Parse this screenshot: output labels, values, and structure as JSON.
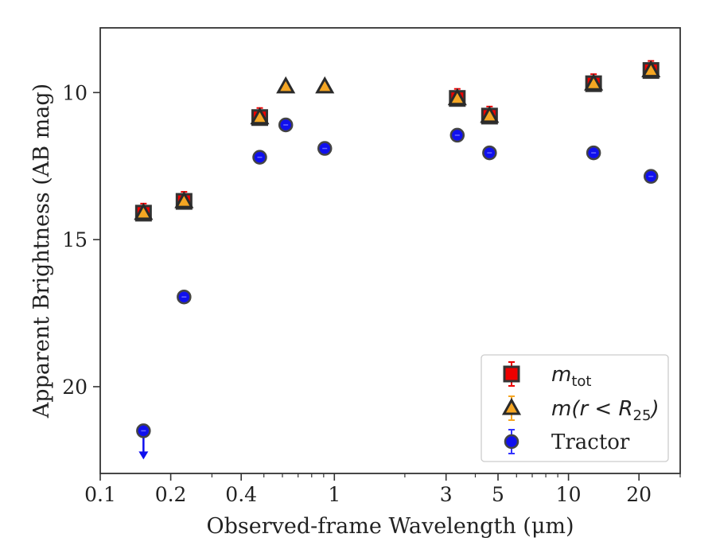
{
  "chart_data": {
    "type": "scatter",
    "xlabel": "Observed-frame Wavelength (μm)",
    "ylabel": "Apparent Brightness (AB mag)",
    "x_scale": "log",
    "y_inverted": true,
    "xlim": [
      0.1,
      30
    ],
    "ylim": [
      22.95,
      7.8
    ],
    "x_ticks": [
      {
        "value": 0.1,
        "label": "0.1"
      },
      {
        "value": 0.2,
        "label": "0.2"
      },
      {
        "value": 0.4,
        "label": "0.4"
      },
      {
        "value": 1,
        "label": "1"
      },
      {
        "value": 3,
        "label": "3"
      },
      {
        "value": 5,
        "label": "5"
      },
      {
        "value": 10,
        "label": "10"
      },
      {
        "value": 20,
        "label": "20"
      }
    ],
    "y_ticks": [
      {
        "value": 10,
        "label": "10"
      },
      {
        "value": 15,
        "label": "15"
      },
      {
        "value": 20,
        "label": "20"
      }
    ],
    "grid": false,
    "legend_position": "lower-right",
    "series": [
      {
        "name": "m_tot",
        "legend_main": "m",
        "legend_sub": "tot",
        "marker": "square",
        "color": "#ee0000",
        "edge_color": "#333333",
        "points": [
          {
            "x": 0.153,
            "y": 14.1
          },
          {
            "x": 0.228,
            "y": 13.7
          },
          {
            "x": 0.48,
            "y": 10.85
          },
          {
            "x": 3.35,
            "y": 10.2
          },
          {
            "x": 4.6,
            "y": 10.8
          },
          {
            "x": 12.8,
            "y": 9.7
          },
          {
            "x": 22.5,
            "y": 9.25
          }
        ]
      },
      {
        "name": "m(r < R25)",
        "legend_main": "m(r < R",
        "legend_sub": "25",
        "legend_tail": ")",
        "marker": "triangle",
        "color": "#f5a623",
        "edge_color": "#2a2a2a",
        "points": [
          {
            "x": 0.153,
            "y": 14.1
          },
          {
            "x": 0.228,
            "y": 13.7
          },
          {
            "x": 0.48,
            "y": 10.85
          },
          {
            "x": 0.62,
            "y": 9.8
          },
          {
            "x": 0.91,
            "y": 9.8
          },
          {
            "x": 3.35,
            "y": 10.2
          },
          {
            "x": 4.6,
            "y": 10.8
          },
          {
            "x": 12.8,
            "y": 9.7
          },
          {
            "x": 22.5,
            "y": 9.25
          }
        ]
      },
      {
        "name": "Tractor",
        "legend_main": "Tractor",
        "marker": "circle",
        "color": "#1010ee",
        "edge_color": "#444444",
        "points": [
          {
            "x": 0.153,
            "y": 21.5,
            "upper_limit": true
          },
          {
            "x": 0.228,
            "y": 16.95
          },
          {
            "x": 0.48,
            "y": 12.2
          },
          {
            "x": 0.62,
            "y": 11.1
          },
          {
            "x": 0.91,
            "y": 11.9
          },
          {
            "x": 3.35,
            "y": 11.45
          },
          {
            "x": 4.6,
            "y": 12.05
          },
          {
            "x": 12.8,
            "y": 12.05
          },
          {
            "x": 22.5,
            "y": 12.85
          }
        ]
      }
    ]
  }
}
